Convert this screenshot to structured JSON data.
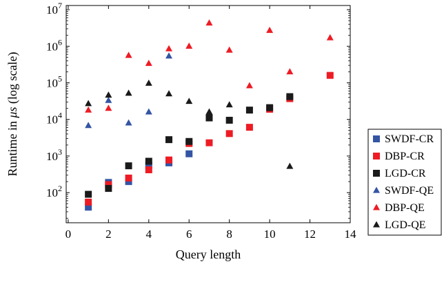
{
  "chart_data": {
    "type": "scatter",
    "xlabel": "Query length",
    "ylabel": "Runtime in μs (log scale)",
    "ylabel_parts": {
      "pre": "Runtime in ",
      "unit": "μs",
      "post": " (log scale)"
    },
    "xlim": [
      -0.1,
      14
    ],
    "ylim": [
      15,
      13000000
    ],
    "yscale": "log",
    "x_ticks": [
      0,
      2,
      4,
      6,
      8,
      10,
      12,
      14
    ],
    "x_tick_labels": [
      "0",
      "2",
      "4",
      "6",
      "8",
      "10",
      "12",
      "14"
    ],
    "y_ticks": [
      100,
      1000,
      10000,
      100000,
      1000000,
      10000000
    ],
    "y_tick_labels": [
      {
        "base": "10",
        "exp": "2"
      },
      {
        "base": "10",
        "exp": "3"
      },
      {
        "base": "10",
        "exp": "4"
      },
      {
        "base": "10",
        "exp": "5"
      },
      {
        "base": "10",
        "exp": "6"
      },
      {
        "base": "10",
        "exp": "7"
      }
    ],
    "grid": false,
    "legend_position": "outside-right",
    "series": [
      {
        "name": "SWDF-CR",
        "marker": "square",
        "color": "#3455a4",
        "x": [
          1,
          2,
          3,
          4,
          5,
          6
        ],
        "y": [
          40,
          190,
          200,
          550,
          650,
          1150
        ]
      },
      {
        "name": "DBP-CR",
        "marker": "square",
        "color": "#ed1c24",
        "x": [
          1,
          2,
          3,
          4,
          5,
          6,
          7,
          8,
          9,
          10,
          11,
          13
        ],
        "y": [
          55,
          165,
          250,
          420,
          780,
          2200,
          2300,
          4100,
          6100,
          19000,
          37000,
          160000
        ]
      },
      {
        "name": "LGD-CR",
        "marker": "square",
        "color": "#1a1a1a",
        "x": [
          1,
          2,
          3,
          4,
          5,
          6,
          7,
          8,
          9,
          10,
          11
        ],
        "y": [
          90,
          130,
          540,
          720,
          2800,
          2500,
          11000,
          9500,
          18000,
          21000,
          42000
        ]
      },
      {
        "name": "SWDF-QE",
        "marker": "triangle",
        "color": "#3455a4",
        "x": [
          1,
          2,
          3,
          4,
          5
        ],
        "y": [
          6800,
          33000,
          8000,
          16000,
          540000
        ]
      },
      {
        "name": "DBP-QE",
        "marker": "triangle",
        "color": "#ed1c24",
        "x": [
          1,
          2,
          3,
          4,
          5,
          6,
          7,
          8,
          9,
          10,
          11,
          13
        ],
        "y": [
          18000,
          20000,
          560000,
          340000,
          850000,
          1000000,
          4300000,
          780000,
          83000,
          2700000,
          200000,
          1700000
        ]
      },
      {
        "name": "LGD-QE",
        "marker": "triangle",
        "color": "#1a1a1a",
        "x": [
          1,
          2,
          3,
          4,
          5,
          6,
          7,
          8,
          11
        ],
        "y": [
          27000,
          46000,
          52000,
          97000,
          50000,
          31000,
          16000,
          25000,
          520
        ]
      }
    ]
  }
}
